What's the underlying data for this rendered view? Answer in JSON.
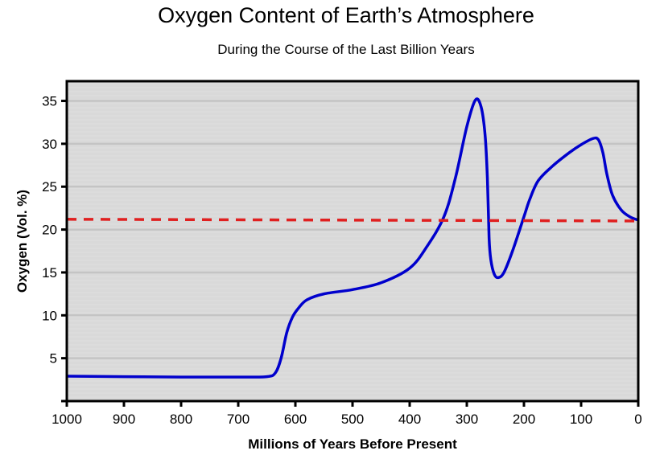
{
  "chart_data": {
    "type": "line",
    "title": "Oxygen Content of Earth’s Atmosphere",
    "subtitle": "During the Course of the Last Billion Years",
    "xlabel": "Millions of Years Before Present",
    "ylabel": "Oxygen (Vol. %)",
    "xlim": [
      1000,
      0
    ],
    "ylim": [
      0,
      37.3
    ],
    "xticks": [
      1000,
      900,
      800,
      700,
      600,
      500,
      400,
      300,
      200,
      100,
      0
    ],
    "yticks": [
      5,
      10,
      15,
      20,
      25,
      30,
      35
    ],
    "grid": true,
    "background": "#d9d9d9",
    "series": [
      {
        "color": "#0000cc",
        "style": "solid",
        "x": [
          1000,
          900,
          800,
          700,
          650,
          635,
          625,
          615,
          605,
          595,
          580,
          550,
          500,
          450,
          400,
          370,
          340,
          320,
          300,
          285,
          275,
          268,
          264,
          261,
          258,
          252,
          245,
          235,
          220,
          200,
          190,
          175,
          150,
          120,
          100,
          80,
          70,
          62,
          55,
          45,
          30,
          15,
          0
        ],
        "y": [
          2.9,
          2.85,
          2.8,
          2.8,
          2.85,
          3.3,
          5,
          8,
          9.8,
          10.8,
          11.8,
          12.5,
          13,
          13.8,
          15.5,
          18,
          21.5,
          26,
          32,
          35.1,
          34.3,
          31,
          26,
          19,
          16.5,
          14.8,
          14.4,
          15,
          17.5,
          21.5,
          23.5,
          25.7,
          27.4,
          29,
          29.9,
          30.6,
          30.5,
          29,
          26.5,
          24,
          22.3,
          21.5,
          21.1
        ]
      },
      {
        "color": "#e02020",
        "style": "dashed",
        "x": [
          1000,
          0
        ],
        "y": [
          21.2,
          21.0
        ]
      }
    ]
  }
}
